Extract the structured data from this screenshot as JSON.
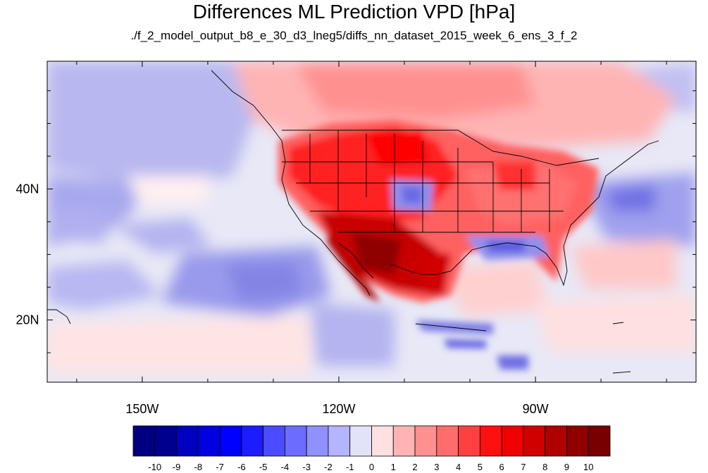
{
  "title": "Differences ML Prediction VPD [hPa]",
  "subtitle": "./f_2_model_output_b8_e_30_d3_lneg5/diffs_nn_dataset_2015_week_6_ens_3_f_2",
  "map": {
    "lon_range": [
      -164.5,
      -65.5
    ],
    "lat_range": [
      10.5,
      59.5
    ],
    "lon_ticks": [
      {
        "value": -150,
        "label": "150W"
      },
      {
        "value": -120,
        "label": "120W"
      },
      {
        "value": -90,
        "label": "90W"
      }
    ],
    "lat_ticks": [
      {
        "value": 40,
        "label": "40N"
      },
      {
        "value": 20,
        "label": "20N"
      }
    ]
  },
  "colorbar": {
    "labels": [
      "-10",
      "-9",
      "-8",
      "-7",
      "-6",
      "-5",
      "-4",
      "-3",
      "-2",
      "-1",
      "0",
      "1",
      "2",
      "3",
      "4",
      "5",
      "6",
      "7",
      "8",
      "9",
      "10"
    ],
    "colors": [
      "#000080",
      "#00008f",
      "#0000c0",
      "#0000e0",
      "#0000ff",
      "#1c1cff",
      "#4b4bff",
      "#6c6cff",
      "#9090ff",
      "#b4b4ff",
      "#e2e2f8",
      "#ffe0e0",
      "#ffb4b4",
      "#ff9090",
      "#ff6c6c",
      "#ff4040",
      "#ff1010",
      "#f00000",
      "#d00000",
      "#b00000",
      "#900000",
      "#780000"
    ]
  }
}
